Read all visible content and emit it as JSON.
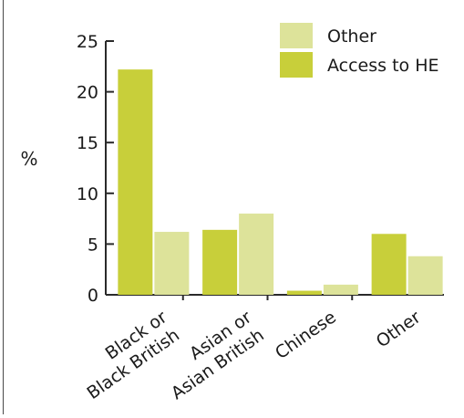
{
  "chart_data": {
    "type": "bar",
    "title": "",
    "xlabel": "",
    "ylabel": "%",
    "ylim": [
      0,
      25
    ],
    "yticks": [
      0,
      5,
      10,
      15,
      20,
      25
    ],
    "grid": false,
    "legend_position": "top-right",
    "categories": [
      [
        "Black or",
        "Black British"
      ],
      [
        "Asian or",
        "Asian British"
      ],
      [
        "Chinese"
      ],
      [
        "Other"
      ]
    ],
    "series": [
      {
        "name": "Access to HE",
        "color": "#c8cf3a",
        "values": [
          22.2,
          6.4,
          0.4,
          6.0
        ]
      },
      {
        "name": "Other",
        "color": "#dde39a",
        "values": [
          6.2,
          8.0,
          1.0,
          3.8
        ]
      }
    ],
    "legend_order": [
      "Other",
      "Access to HE"
    ]
  }
}
